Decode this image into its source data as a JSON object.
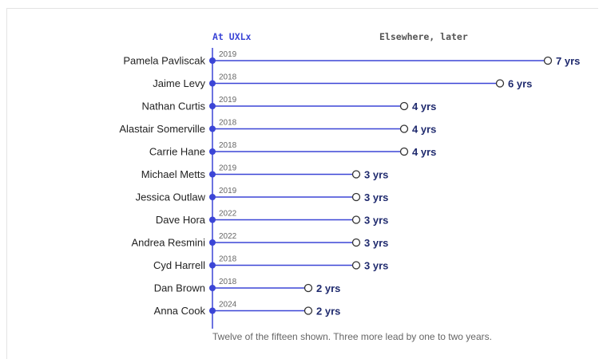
{
  "chart_data": {
    "type": "dumbbell",
    "header_left": "At UXLx",
    "header_right": "Elsewhere, later",
    "footnote": "Twelve of the fifteen shown. Three more lead by one to two years.",
    "unit_suffix": " yrs",
    "colors": {
      "line": "#3b45d6",
      "label": "#1f2a6e",
      "header_right": "#555555"
    },
    "rows": [
      {
        "name": "Pamela Pavliscak",
        "year": "2019",
        "years": 7
      },
      {
        "name": "Jaime Levy",
        "year": "2018",
        "years": 6
      },
      {
        "name": "Nathan Curtis",
        "year": "2019",
        "years": 4
      },
      {
        "name": "Alastair Somerville",
        "year": "2018",
        "years": 4
      },
      {
        "name": "Carrie Hane",
        "year": "2018",
        "years": 4
      },
      {
        "name": "Michael Metts",
        "year": "2019",
        "years": 3
      },
      {
        "name": "Jessica Outlaw",
        "year": "2019",
        "years": 3
      },
      {
        "name": "Dave Hora",
        "year": "2022",
        "years": 3
      },
      {
        "name": "Andrea Resmini",
        "year": "2022",
        "years": 3
      },
      {
        "name": "Cyd Harrell",
        "year": "2018",
        "years": 3
      },
      {
        "name": "Dan Brown",
        "year": "2018",
        "years": 2
      },
      {
        "name": "Anna Cook",
        "year": "2024",
        "years": 2
      }
    ]
  }
}
